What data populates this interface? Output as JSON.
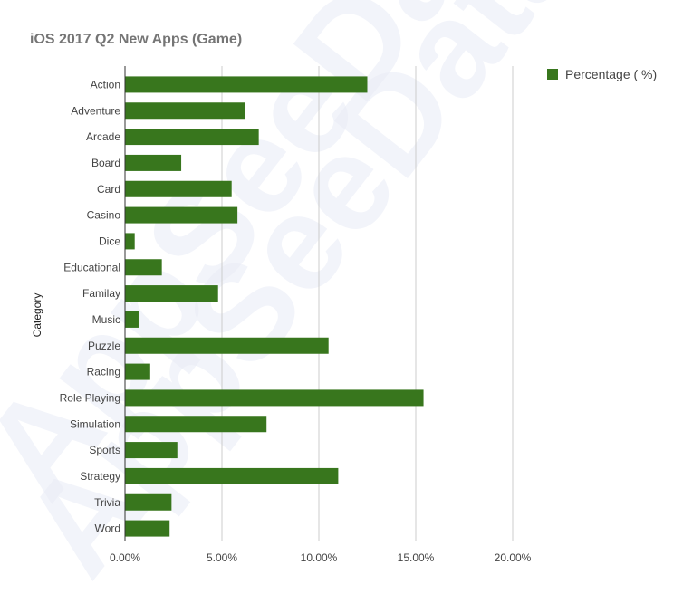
{
  "chart_data": {
    "type": "bar",
    "orientation": "horizontal",
    "title": "iOS 2017 Q2 New Apps (Game)",
    "xlabel": "",
    "ylabel": "Category",
    "xlim": [
      0,
      22
    ],
    "xticks": [
      0,
      5,
      10,
      15,
      20
    ],
    "xtick_labels": [
      "0.00%",
      "5.00%",
      "10.00%",
      "15.00%",
      "20.00%"
    ],
    "grid": true,
    "legend_position": "top-right",
    "categories": [
      "Action",
      "Adventure",
      "Arcade",
      "Board",
      "Card",
      "Casino",
      "Dice",
      "Educational",
      "Familay",
      "Music",
      "Puzzle",
      "Racing",
      "Role Playing",
      "Simulation",
      "Sports",
      "Strategy",
      "Trivia",
      "Word"
    ],
    "series": [
      {
        "name": "Percentage ( %)",
        "color": "#38761d",
        "values": [
          12.5,
          6.2,
          6.9,
          2.9,
          5.5,
          5.8,
          0.5,
          1.9,
          4.8,
          0.7,
          10.5,
          1.3,
          15.4,
          7.3,
          2.7,
          11.0,
          2.4,
          2.3
        ]
      }
    ]
  },
  "watermark": [
    "AppSeeData",
    "AppSeeData"
  ]
}
